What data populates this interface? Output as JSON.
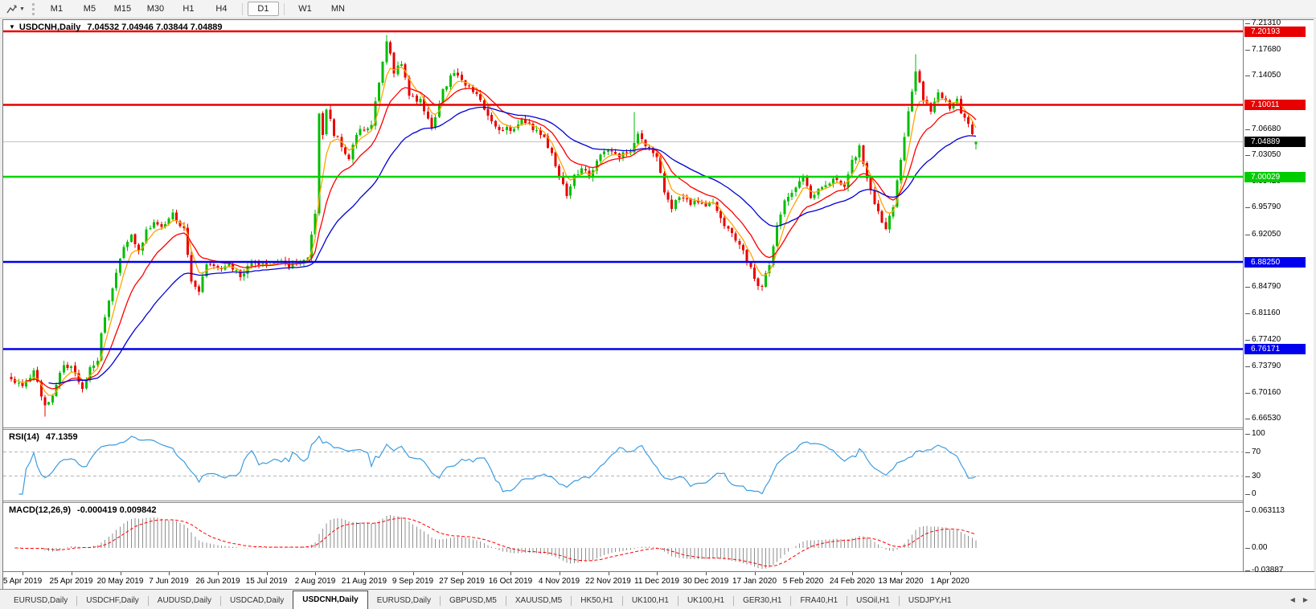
{
  "toolbar": {
    "timeframes": [
      "M1",
      "M5",
      "M15",
      "M30",
      "H1",
      "H4",
      "D1",
      "W1",
      "MN"
    ],
    "active_timeframe": "D1",
    "separators_after": [
      "H4",
      "D1"
    ],
    "dropdown_glyph": "▼"
  },
  "window": {
    "collapse_glyph": "▼",
    "symbol": "USDCNH,Daily",
    "ohlc": "7.04532 7.04946 7.03844 7.04889"
  },
  "rsi_panel": {
    "label": "RSI(14)",
    "value": "47.1359"
  },
  "macd_panel": {
    "label": "MACD(12,26,9)",
    "values": "-0.000419 0.009842"
  },
  "price_axis": {
    "ticks": [
      "7.21310",
      "7.17680",
      "7.14050",
      "7.06680",
      "7.03050",
      "6.99420",
      "6.95790",
      "6.92050",
      "6.84790",
      "6.81160",
      "6.77420",
      "6.73790",
      "6.70160",
      "6.66530"
    ],
    "markers": [
      {
        "value": "7.20193",
        "color": "#e80000"
      },
      {
        "value": "7.10011",
        "color": "#e80000"
      },
      {
        "value": "7.04889",
        "color": "#000000"
      },
      {
        "value": "7.00029",
        "color": "#00cd00"
      },
      {
        "value": "6.88250",
        "color": "#0000ee"
      },
      {
        "value": "6.76171",
        "color": "#0000ee"
      }
    ]
  },
  "rsi_axis": {
    "ticks": [
      "100",
      "70",
      "30",
      "0"
    ]
  },
  "macd_axis": {
    "ticks": [
      "0.063113",
      "0.00",
      "-0.03887"
    ]
  },
  "date_axis": {
    "labels": [
      "5 Apr 2019",
      "25 Apr 2019",
      "20 May 2019",
      "7 Jun 2019",
      "26 Jun 2019",
      "15 Jul 2019",
      "2 Aug 2019",
      "21 Aug 2019",
      "9 Sep 2019",
      "27 Sep 2019",
      "16 Oct 2019",
      "4 Nov 2019",
      "22 Nov 2019",
      "11 Dec 2019",
      "30 Dec 2019",
      "17 Jan 2020",
      "5 Feb 2020",
      "24 Feb 2020",
      "13 Mar 2020",
      "1 Apr 2020"
    ]
  },
  "tabbar": {
    "tabs": [
      "EURUSD,Daily",
      "USDCHF,Daily",
      "AUDUSD,Daily",
      "USDCAD,Daily",
      "USDCNH,Daily",
      "EURUSD,Daily",
      "GBPUSD,M5",
      "XAUUSD,M5",
      "HK50,H1",
      "UK100,H1",
      "UK100,H1",
      "GER30,H1",
      "FRA40,H1",
      "USOil,H1",
      "USDJPY,H1"
    ],
    "active_index": 4,
    "scroll_left_glyph": "◀",
    "scroll_right_glyph": "▶"
  },
  "chart_data": {
    "type": "candlestick",
    "symbol": "USDCNH",
    "timeframe": "Daily",
    "bar_count": 258,
    "seed": 20,
    "noise": 0.0042,
    "y_axis": {
      "top": 7.2131,
      "bottom": 6.6653
    },
    "last_candle": {
      "open": 7.04532,
      "high": 7.04946,
      "low": 7.03844,
      "close": 7.04889
    },
    "close_keyframes": [
      [
        0,
        6.718
      ],
      [
        3,
        6.712
      ],
      [
        6,
        6.73
      ],
      [
        9,
        6.68
      ],
      [
        11,
        6.7
      ],
      [
        14,
        6.742
      ],
      [
        17,
        6.73
      ],
      [
        19,
        6.708
      ],
      [
        21,
        6.738
      ],
      [
        23,
        6.742
      ],
      [
        24,
        6.78
      ],
      [
        26,
        6.825
      ],
      [
        28,
        6.87
      ],
      [
        30,
        6.905
      ],
      [
        32,
        6.92
      ],
      [
        34,
        6.9
      ],
      [
        36,
        6.925
      ],
      [
        38,
        6.935
      ],
      [
        40,
        6.928
      ],
      [
        43,
        6.948
      ],
      [
        46,
        6.93
      ],
      [
        48,
        6.855
      ],
      [
        50,
        6.845
      ],
      [
        52,
        6.88
      ],
      [
        55,
        6.87
      ],
      [
        58,
        6.878
      ],
      [
        61,
        6.865
      ],
      [
        64,
        6.88
      ],
      [
        68,
        6.876
      ],
      [
        71,
        6.882
      ],
      [
        74,
        6.878
      ],
      [
        77,
        6.885
      ],
      [
        79,
        6.89
      ],
      [
        81,
        6.945
      ],
      [
        82,
        7.085
      ],
      [
        83,
        7.06
      ],
      [
        84,
        7.095
      ],
      [
        86,
        7.06
      ],
      [
        88,
        7.045
      ],
      [
        90,
        7.025
      ],
      [
        92,
        7.06
      ],
      [
        94,
        7.065
      ],
      [
        96,
        7.075
      ],
      [
        98,
        7.13
      ],
      [
        100,
        7.19
      ],
      [
        102,
        7.145
      ],
      [
        104,
        7.16
      ],
      [
        106,
        7.115
      ],
      [
        109,
        7.105
      ],
      [
        112,
        7.07
      ],
      [
        115,
        7.12
      ],
      [
        118,
        7.148
      ],
      [
        120,
        7.135
      ],
      [
        123,
        7.12
      ],
      [
        126,
        7.095
      ],
      [
        129,
        7.07
      ],
      [
        133,
        7.065
      ],
      [
        136,
        7.08
      ],
      [
        139,
        7.065
      ],
      [
        142,
        7.055
      ],
      [
        144,
        7.03
      ],
      [
        146,
        7.005
      ],
      [
        148,
        6.975
      ],
      [
        150,
        7.0
      ],
      [
        152,
        7.015
      ],
      [
        154,
        7.0
      ],
      [
        156,
        7.025
      ],
      [
        159,
        7.035
      ],
      [
        162,
        7.03
      ],
      [
        165,
        7.035
      ],
      [
        167,
        7.06
      ],
      [
        169,
        7.04
      ],
      [
        172,
        7.03
      ],
      [
        174,
        6.975
      ],
      [
        176,
        6.96
      ],
      [
        178,
        6.975
      ],
      [
        181,
        6.965
      ],
      [
        185,
        6.96
      ],
      [
        187,
        6.965
      ],
      [
        189,
        6.94
      ],
      [
        192,
        6.92
      ],
      [
        195,
        6.895
      ],
      [
        198,
        6.86
      ],
      [
        200,
        6.845
      ],
      [
        202,
        6.88
      ],
      [
        204,
        6.935
      ],
      [
        206,
        6.965
      ],
      [
        208,
        6.975
      ],
      [
        211,
        7.0
      ],
      [
        213,
        6.97
      ],
      [
        216,
        6.985
      ],
      [
        219,
        7.0
      ],
      [
        222,
        6.99
      ],
      [
        224,
        7.02
      ],
      [
        226,
        7.04
      ],
      [
        228,
        6.995
      ],
      [
        231,
        6.95
      ],
      [
        233,
        6.93
      ],
      [
        235,
        6.96
      ],
      [
        237,
        7.025
      ],
      [
        239,
        7.09
      ],
      [
        241,
        7.15
      ],
      [
        243,
        7.11
      ],
      [
        245,
        7.09
      ],
      [
        247,
        7.12
      ],
      [
        250,
        7.095
      ],
      [
        252,
        7.105
      ],
      [
        254,
        7.08
      ],
      [
        256,
        7.06
      ],
      [
        257,
        7.04889
      ]
    ],
    "wick_overrides": {
      "9": {
        "low": 6.668
      },
      "100": {
        "high": 7.197
      },
      "166": {
        "high": 7.09
      },
      "241": {
        "high": 7.17
      }
    },
    "levels": [
      {
        "price": 7.20193,
        "color": "#e80000"
      },
      {
        "price": 7.10011,
        "color": "#e80000"
      },
      {
        "price": 7.00029,
        "color": "#00d400"
      },
      {
        "price": 6.8825,
        "color": "#0000ee"
      },
      {
        "price": 6.76171,
        "color": "#0000ee"
      }
    ],
    "current_price": {
      "price": 7.04889,
      "line_color": "#c3c3c3"
    },
    "moving_averages": [
      {
        "period": 5,
        "color": "#ffa500"
      },
      {
        "period": 13,
        "color": "#ff0000"
      },
      {
        "period": 34,
        "color": "#0000d4"
      }
    ],
    "candle_colors": {
      "up": "#00be00",
      "down": "#ea0000"
    },
    "indicators": {
      "rsi": {
        "period": 14,
        "last_value": 47.1359,
        "levels": [
          70,
          30
        ],
        "range": [
          0,
          100
        ],
        "color": "#3d9de0"
      },
      "macd": {
        "fast": 12,
        "slow": 26,
        "signal": 9,
        "values": [
          -0.000419,
          0.009842
        ],
        "range": [
          -0.03887,
          0.063113
        ],
        "histogram_color": "#8e8e8e",
        "signal_color": "#ff0000"
      }
    },
    "date_labels_first_bar": 3,
    "date_labels_step": 13
  }
}
